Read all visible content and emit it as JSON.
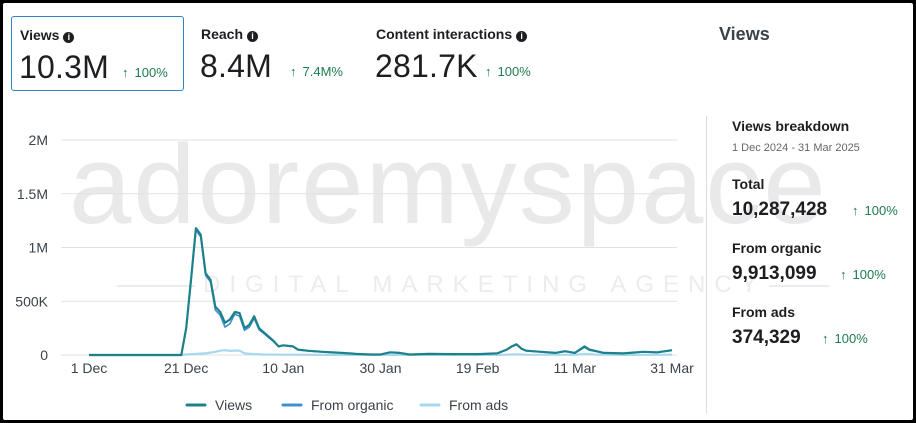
{
  "metrics": [
    {
      "label": "Views",
      "value": "10.3M",
      "delta": "100%"
    },
    {
      "label": "Reach",
      "value": "8.4M",
      "delta": "7.4M%"
    },
    {
      "label": "Content interactions",
      "value": "281.7K",
      "delta": "100%"
    }
  ],
  "panel_title": "Views",
  "breakdown": {
    "title": "Views breakdown",
    "date_range": "1 Dec 2024 - 31 Mar 2025",
    "rows": [
      {
        "label": "Total",
        "value": "10,287,428",
        "delta": "100%"
      },
      {
        "label": "From organic",
        "value": "9,913,099",
        "delta": "100%"
      },
      {
        "label": "From ads",
        "value": "374,329",
        "delta": "100%"
      }
    ]
  },
  "watermark": {
    "brand": "adoremyspace",
    "tagline": "DIGITAL MARKETING AGENCY"
  },
  "icons": {
    "info": "info-icon",
    "up_arrow": "arrow-up-icon"
  },
  "colors": {
    "views": "#1d8189",
    "organic": "#3f8fd0",
    "ads": "#a7d8ef",
    "positive": "#1e7b4f",
    "selected_border": "#2e86c1"
  },
  "chart_data": {
    "type": "line",
    "x_tick_labels": [
      "1 Dec",
      "21 Dec",
      "10 Jan",
      "30 Jan",
      "19 Feb",
      "11 Mar",
      "31 Mar"
    ],
    "x_tick_days": [
      0,
      20,
      40,
      60,
      80,
      100,
      120
    ],
    "y_tick_labels": [
      "0",
      "500K",
      "1M",
      "1.5M",
      "2M"
    ],
    "y_ticks": [
      0,
      500000,
      1000000,
      1500000,
      2000000
    ],
    "ylim": [
      0,
      2000000
    ],
    "xlim_days": [
      0,
      120
    ],
    "series": [
      {
        "name": "Views",
        "points": [
          [
            0,
            0
          ],
          [
            19,
            0
          ],
          [
            20,
            250000
          ],
          [
            21,
            700000
          ],
          [
            22,
            1180000
          ],
          [
            23,
            1120000
          ],
          [
            24,
            760000
          ],
          [
            25,
            700000
          ],
          [
            26,
            450000
          ],
          [
            27,
            400000
          ],
          [
            28,
            300000
          ],
          [
            29,
            330000
          ],
          [
            30,
            400000
          ],
          [
            31,
            390000
          ],
          [
            32,
            250000
          ],
          [
            33,
            280000
          ],
          [
            34,
            360000
          ],
          [
            35,
            250000
          ],
          [
            36,
            210000
          ],
          [
            37,
            170000
          ],
          [
            38,
            130000
          ],
          [
            39,
            80000
          ],
          [
            40,
            90000
          ],
          [
            41,
            85000
          ],
          [
            42,
            80000
          ],
          [
            43,
            50000
          ],
          [
            45,
            40000
          ],
          [
            48,
            30000
          ],
          [
            52,
            20000
          ],
          [
            55,
            10000
          ],
          [
            58,
            5000
          ],
          [
            60,
            5000
          ],
          [
            62,
            25000
          ],
          [
            64,
            20000
          ],
          [
            66,
            5000
          ],
          [
            70,
            10000
          ],
          [
            75,
            8000
          ],
          [
            80,
            8000
          ],
          [
            84,
            15000
          ],
          [
            86,
            50000
          ],
          [
            87,
            80000
          ],
          [
            88,
            100000
          ],
          [
            89,
            60000
          ],
          [
            90,
            40000
          ],
          [
            93,
            30000
          ],
          [
            96,
            20000
          ],
          [
            98,
            35000
          ],
          [
            100,
            20000
          ],
          [
            102,
            80000
          ],
          [
            103,
            50000
          ],
          [
            104,
            40000
          ],
          [
            106,
            20000
          ],
          [
            110,
            15000
          ],
          [
            114,
            30000
          ],
          [
            117,
            25000
          ],
          [
            120,
            45000
          ]
        ]
      },
      {
        "name": "From organic",
        "points": [
          [
            0,
            0
          ],
          [
            19,
            0
          ],
          [
            20,
            240000
          ],
          [
            21,
            680000
          ],
          [
            22,
            1160000
          ],
          [
            23,
            1100000
          ],
          [
            24,
            740000
          ],
          [
            25,
            680000
          ],
          [
            26,
            420000
          ],
          [
            27,
            370000
          ],
          [
            28,
            260000
          ],
          [
            29,
            290000
          ],
          [
            30,
            380000
          ],
          [
            31,
            360000
          ],
          [
            32,
            230000
          ],
          [
            33,
            260000
          ],
          [
            34,
            340000
          ],
          [
            35,
            235000
          ],
          [
            36,
            200000
          ],
          [
            37,
            160000
          ],
          [
            38,
            125000
          ],
          [
            39,
            78000
          ],
          [
            40,
            88000
          ],
          [
            41,
            83000
          ],
          [
            42,
            78000
          ],
          [
            43,
            48000
          ],
          [
            45,
            38000
          ],
          [
            48,
            28000
          ],
          [
            52,
            19000
          ],
          [
            55,
            9000
          ],
          [
            58,
            4500
          ],
          [
            60,
            4500
          ],
          [
            62,
            24000
          ],
          [
            64,
            19000
          ],
          [
            66,
            4500
          ],
          [
            70,
            9500
          ],
          [
            75,
            7500
          ],
          [
            80,
            7500
          ],
          [
            84,
            14000
          ],
          [
            86,
            48000
          ],
          [
            87,
            76000
          ],
          [
            88,
            95000
          ],
          [
            89,
            57000
          ],
          [
            90,
            38000
          ],
          [
            93,
            28000
          ],
          [
            96,
            19000
          ],
          [
            98,
            33000
          ],
          [
            100,
            18000
          ],
          [
            102,
            72000
          ],
          [
            103,
            45000
          ],
          [
            104,
            36000
          ],
          [
            106,
            18000
          ],
          [
            110,
            14000
          ],
          [
            114,
            28000
          ],
          [
            117,
            23000
          ],
          [
            120,
            42000
          ]
        ]
      },
      {
        "name": "From ads",
        "points": [
          [
            0,
            0
          ],
          [
            19,
            0
          ],
          [
            20,
            5000
          ],
          [
            22,
            10000
          ],
          [
            24,
            15000
          ],
          [
            26,
            30000
          ],
          [
            27,
            40000
          ],
          [
            28,
            45000
          ],
          [
            29,
            38000
          ],
          [
            30,
            42000
          ],
          [
            31,
            40000
          ],
          [
            32,
            15000
          ],
          [
            34,
            8000
          ],
          [
            36,
            5000
          ],
          [
            40,
            3000
          ],
          [
            50,
            1000
          ],
          [
            60,
            1000
          ],
          [
            80,
            1000
          ],
          [
            84,
            1000
          ],
          [
            86,
            3000
          ],
          [
            88,
            6000
          ],
          [
            90,
            3000
          ],
          [
            100,
            2000
          ],
          [
            102,
            10000
          ],
          [
            104,
            5000
          ],
          [
            110,
            1000
          ],
          [
            120,
            3000
          ]
        ]
      }
    ]
  }
}
